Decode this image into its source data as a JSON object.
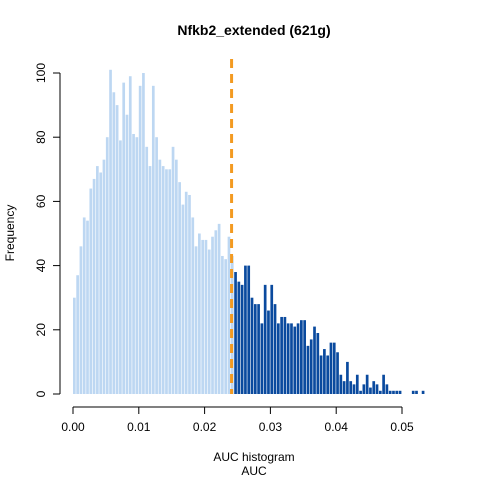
{
  "chart_data": {
    "type": "bar",
    "title": "Nfkb2_extended (621g)",
    "xlabel": "AUC histogram",
    "xlabel_sub": "AUC",
    "ylabel": "Frequency",
    "xlim": [
      0.0,
      0.055
    ],
    "ylim": [
      0,
      100
    ],
    "x_ticks": [
      0.0,
      0.01,
      0.02,
      0.03,
      0.04,
      0.05
    ],
    "x_tick_labels": [
      "0.00",
      "0.01",
      "0.02",
      "0.03",
      "0.04",
      "0.05"
    ],
    "y_ticks": [
      0,
      20,
      40,
      60,
      80,
      100
    ],
    "y_tick_labels": [
      "0",
      "20",
      "40",
      "60",
      "80",
      "100"
    ],
    "bin_width": 0.0005,
    "bin_start": 0.0,
    "threshold": 0.0241,
    "colors": {
      "below_threshold": "#bdd7f2",
      "above_threshold": "#0a4a9e",
      "threshold_line": "#f39a21"
    },
    "values": [
      30,
      37,
      46,
      55,
      54,
      64,
      67,
      71,
      69,
      73,
      80,
      101,
      94,
      90,
      79,
      97,
      87,
      99,
      81,
      80,
      96,
      100,
      77,
      71,
      96,
      80,
      73,
      71,
      70,
      70,
      77,
      73,
      66,
      59,
      63,
      62,
      55,
      46,
      50,
      48,
      48,
      45,
      49,
      51,
      53,
      43,
      42,
      49,
      43,
      38,
      35,
      34,
      40,
      40,
      30,
      28,
      28,
      22,
      34,
      26,
      34,
      28,
      22,
      24,
      24,
      22,
      22,
      21,
      22,
      23,
      23,
      15,
      17,
      21,
      19,
      12,
      14,
      12,
      16,
      16,
      13,
      6,
      4,
      10,
      4,
      3,
      6,
      1,
      3,
      6,
      2,
      4,
      3,
      1,
      6,
      3,
      1,
      1,
      1,
      1,
      0,
      0,
      0,
      1,
      1,
      0,
      1,
      0,
      0
    ]
  }
}
